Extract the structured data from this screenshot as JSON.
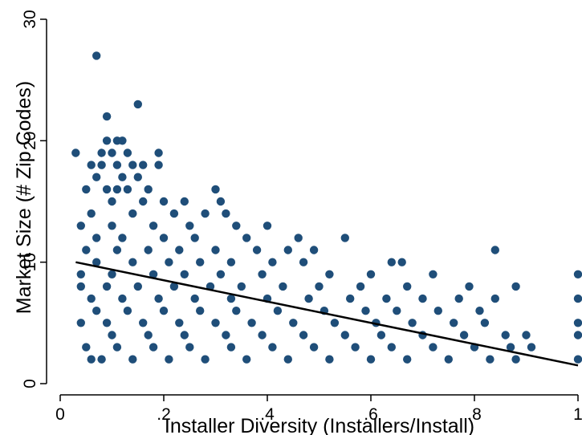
{
  "chart_data": {
    "type": "scatter",
    "xlabel": "Installer Diversity (Installers/Install)",
    "ylabel": "Market Size (# Zip Codes)",
    "xlim": [
      0,
      1
    ],
    "ylim": [
      0,
      30
    ],
    "x_ticks": [
      {
        "value": 0,
        "label": "0"
      },
      {
        "value": 0.2,
        "label": ".2"
      },
      {
        "value": 0.4,
        "label": ".4"
      },
      {
        "value": 0.6,
        "label": ".6"
      },
      {
        "value": 0.8,
        "label": ".8"
      },
      {
        "value": 1,
        "label": "1"
      }
    ],
    "y_ticks": [
      {
        "value": 0,
        "label": "0"
      },
      {
        "value": 10,
        "label": "10"
      },
      {
        "value": 20,
        "label": "20"
      },
      {
        "value": 30,
        "label": "30"
      }
    ],
    "grid": false,
    "colors": {
      "points": "#1f4e79",
      "fit_line": "#000000",
      "axes": "#000000"
    },
    "fit_line": {
      "x": [
        0.03,
        1.0
      ],
      "y": [
        10.0,
        1.5
      ]
    },
    "series": [
      {
        "points": [
          [
            0.07,
            27
          ],
          [
            0.15,
            23
          ],
          [
            0.09,
            22
          ],
          [
            0.11,
            20
          ],
          [
            0.12,
            20
          ],
          [
            0.09,
            20
          ],
          [
            0.03,
            19
          ],
          [
            0.13,
            19
          ],
          [
            0.19,
            19
          ],
          [
            0.1,
            19
          ],
          [
            0.08,
            19
          ],
          [
            0.06,
            18
          ],
          [
            0.08,
            18
          ],
          [
            0.11,
            18
          ],
          [
            0.14,
            18
          ],
          [
            0.16,
            18
          ],
          [
            0.19,
            18
          ],
          [
            0.12,
            17
          ],
          [
            0.15,
            17
          ],
          [
            0.07,
            17
          ],
          [
            0.05,
            16
          ],
          [
            0.09,
            16
          ],
          [
            0.11,
            16
          ],
          [
            0.13,
            16
          ],
          [
            0.17,
            16
          ],
          [
            0.3,
            16
          ],
          [
            0.1,
            15
          ],
          [
            0.16,
            15
          ],
          [
            0.2,
            15
          ],
          [
            0.24,
            15
          ],
          [
            0.31,
            15
          ],
          [
            0.06,
            14
          ],
          [
            0.14,
            14
          ],
          [
            0.22,
            14
          ],
          [
            0.28,
            14
          ],
          [
            0.32,
            14
          ],
          [
            0.04,
            13
          ],
          [
            0.1,
            13
          ],
          [
            0.18,
            13
          ],
          [
            0.25,
            13
          ],
          [
            0.34,
            13
          ],
          [
            0.4,
            13
          ],
          [
            0.07,
            12
          ],
          [
            0.12,
            12
          ],
          [
            0.2,
            12
          ],
          [
            0.26,
            12
          ],
          [
            0.36,
            12
          ],
          [
            0.46,
            12
          ],
          [
            0.55,
            12
          ],
          [
            0.05,
            11
          ],
          [
            0.11,
            11
          ],
          [
            0.17,
            11
          ],
          [
            0.23,
            11
          ],
          [
            0.3,
            11
          ],
          [
            0.38,
            11
          ],
          [
            0.44,
            11
          ],
          [
            0.49,
            11
          ],
          [
            0.84,
            11
          ],
          [
            0.07,
            10
          ],
          [
            0.14,
            10
          ],
          [
            0.21,
            10
          ],
          [
            0.27,
            10
          ],
          [
            0.33,
            10
          ],
          [
            0.41,
            10
          ],
          [
            0.47,
            10
          ],
          [
            0.64,
            10
          ],
          [
            0.66,
            10
          ],
          [
            0.04,
            9
          ],
          [
            0.1,
            9
          ],
          [
            0.18,
            9
          ],
          [
            0.24,
            9
          ],
          [
            0.31,
            9
          ],
          [
            0.39,
            9
          ],
          [
            0.52,
            9
          ],
          [
            0.6,
            9
          ],
          [
            0.72,
            9
          ],
          [
            1.0,
            9
          ],
          [
            0.04,
            8
          ],
          [
            0.09,
            8
          ],
          [
            0.15,
            8
          ],
          [
            0.22,
            8
          ],
          [
            0.29,
            8
          ],
          [
            0.35,
            8
          ],
          [
            0.43,
            8
          ],
          [
            0.5,
            8
          ],
          [
            0.58,
            8
          ],
          [
            0.67,
            8
          ],
          [
            0.79,
            8
          ],
          [
            0.88,
            8
          ],
          [
            0.06,
            7
          ],
          [
            0.12,
            7
          ],
          [
            0.19,
            7
          ],
          [
            0.26,
            7
          ],
          [
            0.33,
            7
          ],
          [
            0.4,
            7
          ],
          [
            0.48,
            7
          ],
          [
            0.56,
            7
          ],
          [
            0.63,
            7
          ],
          [
            0.7,
            7
          ],
          [
            0.77,
            7
          ],
          [
            0.84,
            7
          ],
          [
            1.0,
            7
          ],
          [
            0.07,
            6
          ],
          [
            0.13,
            6
          ],
          [
            0.2,
            6
          ],
          [
            0.27,
            6
          ],
          [
            0.34,
            6
          ],
          [
            0.42,
            6
          ],
          [
            0.51,
            6
          ],
          [
            0.59,
            6
          ],
          [
            0.65,
            6
          ],
          [
            0.73,
            6
          ],
          [
            0.81,
            6
          ],
          [
            0.09,
            5
          ],
          [
            0.04,
            5
          ],
          [
            0.16,
            5
          ],
          [
            0.23,
            5
          ],
          [
            0.3,
            5
          ],
          [
            0.37,
            5
          ],
          [
            0.45,
            5
          ],
          [
            0.53,
            5
          ],
          [
            0.61,
            5
          ],
          [
            0.68,
            5
          ],
          [
            0.76,
            5
          ],
          [
            0.82,
            5
          ],
          [
            1.0,
            5
          ],
          [
            0.1,
            4
          ],
          [
            0.17,
            4
          ],
          [
            0.24,
            4
          ],
          [
            0.32,
            4
          ],
          [
            0.39,
            4
          ],
          [
            0.47,
            4
          ],
          [
            0.55,
            4
          ],
          [
            0.62,
            4
          ],
          [
            0.7,
            4
          ],
          [
            0.78,
            4
          ],
          [
            0.86,
            4
          ],
          [
            0.9,
            4
          ],
          [
            1.0,
            4
          ],
          [
            0.05,
            3
          ],
          [
            0.11,
            3
          ],
          [
            0.18,
            3
          ],
          [
            0.25,
            3
          ],
          [
            0.33,
            3
          ],
          [
            0.41,
            3
          ],
          [
            0.49,
            3
          ],
          [
            0.57,
            3
          ],
          [
            0.64,
            3
          ],
          [
            0.72,
            3
          ],
          [
            0.8,
            3
          ],
          [
            0.87,
            3
          ],
          [
            0.91,
            3
          ],
          [
            0.06,
            2
          ],
          [
            0.08,
            2
          ],
          [
            0.14,
            2
          ],
          [
            0.21,
            2
          ],
          [
            0.28,
            2
          ],
          [
            0.36,
            2
          ],
          [
            0.44,
            2
          ],
          [
            0.52,
            2
          ],
          [
            0.6,
            2
          ],
          [
            0.67,
            2
          ],
          [
            0.75,
            2
          ],
          [
            0.83,
            2
          ],
          [
            0.88,
            2
          ],
          [
            1.0,
            2
          ]
        ]
      }
    ]
  }
}
